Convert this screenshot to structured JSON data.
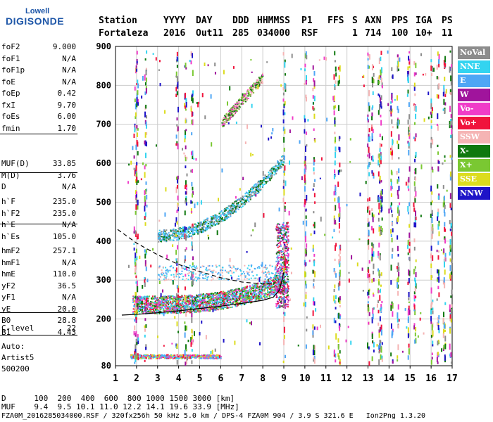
{
  "logo": {
    "brand": "Lowell",
    "product": "DIGISONDE"
  },
  "header": {
    "row1": [
      "Station",
      "YYYY",
      "DAY",
      "DDD",
      "HHMMSS",
      "P1",
      "FFS",
      "S",
      "AXN",
      "PPS",
      "IGA",
      "PS"
    ],
    "row2": [
      "Fortaleza",
      "2016",
      "Out11",
      "285",
      "034000",
      "RSF",
      "",
      "1",
      "714",
      "100",
      "10+",
      "11"
    ]
  },
  "params_group1": [
    {
      "name": "foF2",
      "value": "9.000"
    },
    {
      "name": "foF1",
      "value": "N/A"
    },
    {
      "name": "foF1p",
      "value": "N/A"
    },
    {
      "name": "foE",
      "value": "N/A"
    },
    {
      "name": "foEp",
      "value": "0.42"
    },
    {
      "name": "fxI",
      "value": "9.70"
    },
    {
      "name": "foEs",
      "value": "6.00"
    },
    {
      "name": "fmin",
      "value": "1.70"
    }
  ],
  "params_group2": [
    {
      "name": "MUF(D)",
      "value": "33.85"
    },
    {
      "name": "M(D)",
      "value": "3.76"
    },
    {
      "name": "D",
      "value": "N/A"
    }
  ],
  "params_group3": [
    {
      "name": "h`F",
      "value": "235.0"
    },
    {
      "name": "h`F2",
      "value": "235.0"
    },
    {
      "name": "h`E",
      "value": "N/A"
    },
    {
      "name": "h`Es",
      "value": "105.0"
    }
  ],
  "params_group4": [
    {
      "name": "hmF2",
      "value": "257.1"
    },
    {
      "name": "hmF1",
      "value": "N/A"
    },
    {
      "name": "hmE",
      "value": "110.0"
    },
    {
      "name": "yF2",
      "value": "36.5"
    },
    {
      "name": "yF1",
      "value": "N/A"
    },
    {
      "name": "yE",
      "value": "20.0"
    },
    {
      "name": "B0",
      "value": "28.8"
    },
    {
      "name": "B1",
      "value": "4.43"
    }
  ],
  "params_group5": [
    {
      "name": "C-level",
      "value": "22"
    }
  ],
  "auto": {
    "l1": "Auto:",
    "l2": "Artist5",
    "l3": "500200"
  },
  "legend": [
    {
      "label": "NoVal",
      "color": "#8c8c8c"
    },
    {
      "label": "NNE",
      "color": "#33d4f0"
    },
    {
      "label": "E",
      "color": "#4ea6f5"
    },
    {
      "label": "W",
      "color": "#a0149c"
    },
    {
      "label": "Vo-",
      "color": "#f03cc8"
    },
    {
      "label": "Vo+",
      "color": "#f0143c"
    },
    {
      "label": "SSW",
      "color": "#f5b4b4"
    },
    {
      "label": "X-",
      "color": "#0f780f"
    },
    {
      "label": "X+",
      "color": "#7ac832"
    },
    {
      "label": "SSE",
      "color": "#dcdc1e"
    },
    {
      "label": "NNW",
      "color": "#1e14c8"
    }
  ],
  "footer": {
    "row_d": "D      100  200  400  600  800 1000 1500 3000 [km]",
    "row_muf": "MUF    9.4  9.5 10.1 11.0 12.2 14.1 19.6 33.9 [MHz]",
    "file_line": "FZA0M_2016285034000.RSF / 320fx256h 50 kHz 5.0 km / DPS-4 FZA0M 904 / 3.9 S 321.6 E   Ion2Png 1.3.20"
  },
  "chart_data": {
    "type": "scatter",
    "title": "",
    "xlabel": "",
    "ylabel": "",
    "xlim": [
      1,
      17
    ],
    "ylim": [
      80,
      900
    ],
    "xticks": [
      1,
      2,
      3,
      4,
      5,
      6,
      7,
      8,
      9,
      10,
      11,
      12,
      13,
      14,
      15,
      16,
      17
    ],
    "yticks": [
      200,
      300,
      400,
      500,
      600,
      700,
      800,
      900
    ],
    "ytick_bottom_label": "80",
    "grid": true,
    "es_trace": {
      "x": [
        1.7,
        6.0
      ],
      "height": 105
    },
    "profile_curve": {
      "x": [
        1.3,
        2.0,
        3.0,
        4.0,
        5.0,
        6.0,
        7.0,
        8.0,
        8.5,
        8.8,
        9.0
      ],
      "y": [
        210,
        212,
        216,
        221,
        227,
        233,
        240,
        248,
        256,
        275,
        320
      ]
    },
    "dashed_curve": {
      "x": [
        1.1,
        2.0,
        3.0,
        4.0,
        5.0,
        6.0,
        7.0,
        8.0,
        8.6
      ],
      "y": [
        430,
        395,
        365,
        340,
        322,
        306,
        295,
        290,
        292
      ]
    }
  }
}
